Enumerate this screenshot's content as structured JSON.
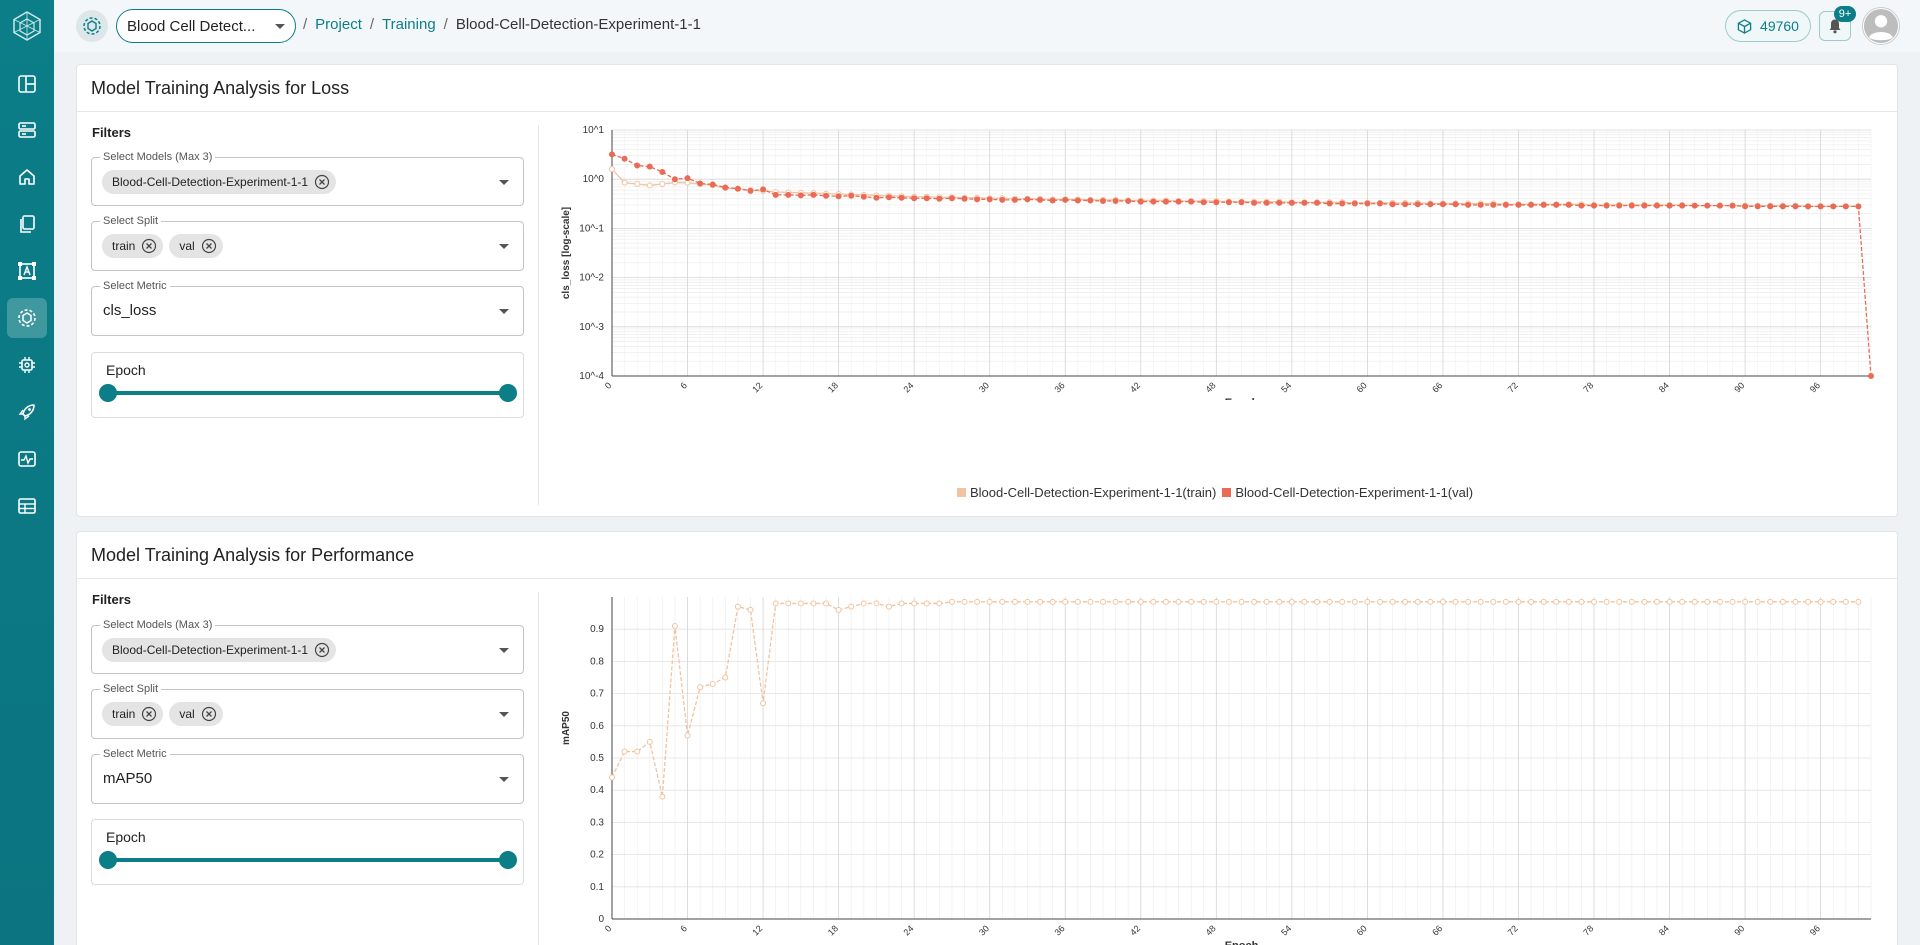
{
  "header": {
    "project_select": "Blood Cell Detect...",
    "breadcrumb": {
      "sep": "/",
      "project": "Project",
      "training": "Training",
      "current": "Blood-Cell-Detection-Experiment-1-1"
    },
    "credits": "49760",
    "notifications_badge": "9+"
  },
  "sidebar": {
    "items": [
      "dashboard-icon",
      "storage-icon",
      "home-icon",
      "documents-icon",
      "annotation-icon",
      "training-icon",
      "chip-icon",
      "deploy-icon",
      "monitor-icon",
      "data-icon"
    ],
    "active": "training-icon"
  },
  "colors": {
    "accent": "#0b7e88",
    "train": "#f2c3a0",
    "val": "#ea6b55"
  },
  "loss_panel": {
    "title": "Model Training Analysis for Loss",
    "filters_title": "Filters",
    "models_label": "Select Models (Max 3)",
    "model_chip": "Blood-Cell-Detection-Experiment-1-1",
    "split_label": "Select Split",
    "split_chips": [
      "train",
      "val"
    ],
    "metric_label": "Select Metric",
    "metric_value": "cls_loss",
    "epoch_label": "Epoch"
  },
  "perf_panel": {
    "title": "Model Training Analysis for Performance",
    "filters_title": "Filters",
    "models_label": "Select Models (Max 3)",
    "model_chip": "Blood-Cell-Detection-Experiment-1-1",
    "split_label": "Select Split",
    "split_chips": [
      "train",
      "val"
    ],
    "metric_label": "Select Metric",
    "metric_value": "mAP50",
    "epoch_label": "Epoch"
  },
  "chart_data": [
    {
      "type": "line",
      "ylabel": "cls_loss [log-scale]",
      "xlabel": "Epoch",
      "yscale": "log",
      "ylim": [
        0.0001,
        10
      ],
      "ytick_labels": [
        "10^1",
        "10^0",
        "10^-1",
        "10^-2",
        "10^-3",
        "10^-4"
      ],
      "xlim": [
        0,
        100
      ],
      "xticks": [
        0,
        6,
        12,
        18,
        24,
        30,
        36,
        42,
        48,
        54,
        60,
        66,
        72,
        78,
        84,
        90,
        96
      ],
      "legend": [
        "Blood-Cell-Detection-Experiment-1-1(train)",
        "Blood-Cell-Detection-Experiment-1-1(val)"
      ],
      "series": [
        {
          "name": "Blood-Cell-Detection-Experiment-1-1(train)",
          "values": [
            1.6,
            0.85,
            0.8,
            0.75,
            0.8,
            0.86,
            0.85,
            0.8,
            0.75,
            0.66,
            0.64,
            0.6,
            0.58,
            0.55,
            0.54,
            0.53,
            0.52,
            0.51,
            0.5,
            0.49,
            0.48,
            0.47,
            0.46,
            0.45,
            0.44,
            0.44,
            0.43,
            0.43,
            0.42,
            0.42,
            0.41,
            0.41,
            0.4,
            0.4,
            0.4,
            0.39,
            0.39,
            0.39,
            0.38,
            0.38,
            0.38,
            0.37,
            0.37,
            0.37,
            0.37,
            0.36,
            0.36,
            0.36,
            0.36,
            0.35,
            0.35,
            0.35,
            0.35,
            0.35,
            0.34,
            0.34,
            0.34,
            0.34,
            0.34,
            0.33,
            0.33,
            0.33,
            0.33,
            0.33,
            0.33,
            0.32,
            0.32,
            0.32,
            0.32,
            0.32,
            0.32,
            0.31,
            0.31,
            0.31,
            0.31,
            0.31,
            0.31,
            0.31,
            0.3,
            0.3,
            0.3,
            0.3,
            0.3,
            0.3,
            0.3,
            0.3,
            0.29,
            0.29,
            0.29,
            0.29,
            0.29,
            0.29,
            0.29,
            0.29,
            0.29,
            0.28,
            0.28,
            0.28,
            0.28,
            0.28
          ]
        },
        {
          "name": "Blood-Cell-Detection-Experiment-1-1(val)",
          "values": [
            3.2,
            2.6,
            1.9,
            1.8,
            1.4,
            1.0,
            1.05,
            0.82,
            0.78,
            0.68,
            0.64,
            0.58,
            0.62,
            0.48,
            0.48,
            0.47,
            0.48,
            0.46,
            0.45,
            0.46,
            0.44,
            0.42,
            0.43,
            0.42,
            0.41,
            0.41,
            0.4,
            0.41,
            0.4,
            0.39,
            0.39,
            0.38,
            0.38,
            0.39,
            0.38,
            0.37,
            0.38,
            0.37,
            0.37,
            0.36,
            0.36,
            0.36,
            0.35,
            0.35,
            0.35,
            0.35,
            0.35,
            0.34,
            0.34,
            0.34,
            0.34,
            0.33,
            0.33,
            0.33,
            0.33,
            0.33,
            0.33,
            0.32,
            0.32,
            0.32,
            0.32,
            0.32,
            0.31,
            0.31,
            0.31,
            0.31,
            0.31,
            0.31,
            0.3,
            0.3,
            0.3,
            0.3,
            0.3,
            0.3,
            0.3,
            0.3,
            0.3,
            0.29,
            0.29,
            0.29,
            0.29,
            0.29,
            0.29,
            0.29,
            0.29,
            0.29,
            0.29,
            0.29,
            0.29,
            0.29,
            0.28,
            0.28,
            0.28,
            0.28,
            0.28,
            0.28,
            0.28,
            0.28,
            0.28,
            0.28
          ],
          "final_point": {
            "x": 100,
            "y": 0.0001
          }
        }
      ]
    },
    {
      "type": "line",
      "ylabel": "mAP50",
      "xlabel": "Epoch",
      "ylim": [
        0,
        1.0
      ],
      "yticks": [
        0,
        0.1,
        0.2,
        0.3,
        0.4,
        0.5,
        0.6,
        0.7,
        0.8,
        0.9
      ],
      "xlim": [
        0,
        100
      ],
      "xticks": [
        0,
        6,
        12,
        18,
        24,
        30,
        36,
        42,
        48,
        54,
        60,
        66,
        72,
        78,
        84,
        90,
        96
      ],
      "series": [
        {
          "name": "Blood-Cell-Detection-Experiment-1-1(val)",
          "values": [
            0.44,
            0.52,
            0.52,
            0.55,
            0.38,
            0.91,
            0.57,
            0.72,
            0.73,
            0.75,
            0.97,
            0.96,
            0.67,
            0.98,
            0.98,
            0.98,
            0.98,
            0.98,
            0.96,
            0.97,
            0.98,
            0.98,
            0.97,
            0.98,
            0.98,
            0.98,
            0.98,
            0.985,
            0.985,
            0.985,
            0.985,
            0.985,
            0.985,
            0.985,
            0.985,
            0.985,
            0.985,
            0.985,
            0.985,
            0.985,
            0.985,
            0.985,
            0.985,
            0.985,
            0.985,
            0.985,
            0.985,
            0.985,
            0.985,
            0.985,
            0.985,
            0.985,
            0.985,
            0.985,
            0.985,
            0.985,
            0.985,
            0.985,
            0.985,
            0.985,
            0.985,
            0.985,
            0.985,
            0.985,
            0.985,
            0.985,
            0.985,
            0.985,
            0.985,
            0.985,
            0.985,
            0.985,
            0.985,
            0.985,
            0.985,
            0.985,
            0.985,
            0.985,
            0.985,
            0.985,
            0.985,
            0.985,
            0.985,
            0.985,
            0.985,
            0.985,
            0.985,
            0.985,
            0.985,
            0.985,
            0.985,
            0.985,
            0.985,
            0.985,
            0.985,
            0.985,
            0.985,
            0.985,
            0.985,
            0.985
          ]
        }
      ]
    }
  ]
}
